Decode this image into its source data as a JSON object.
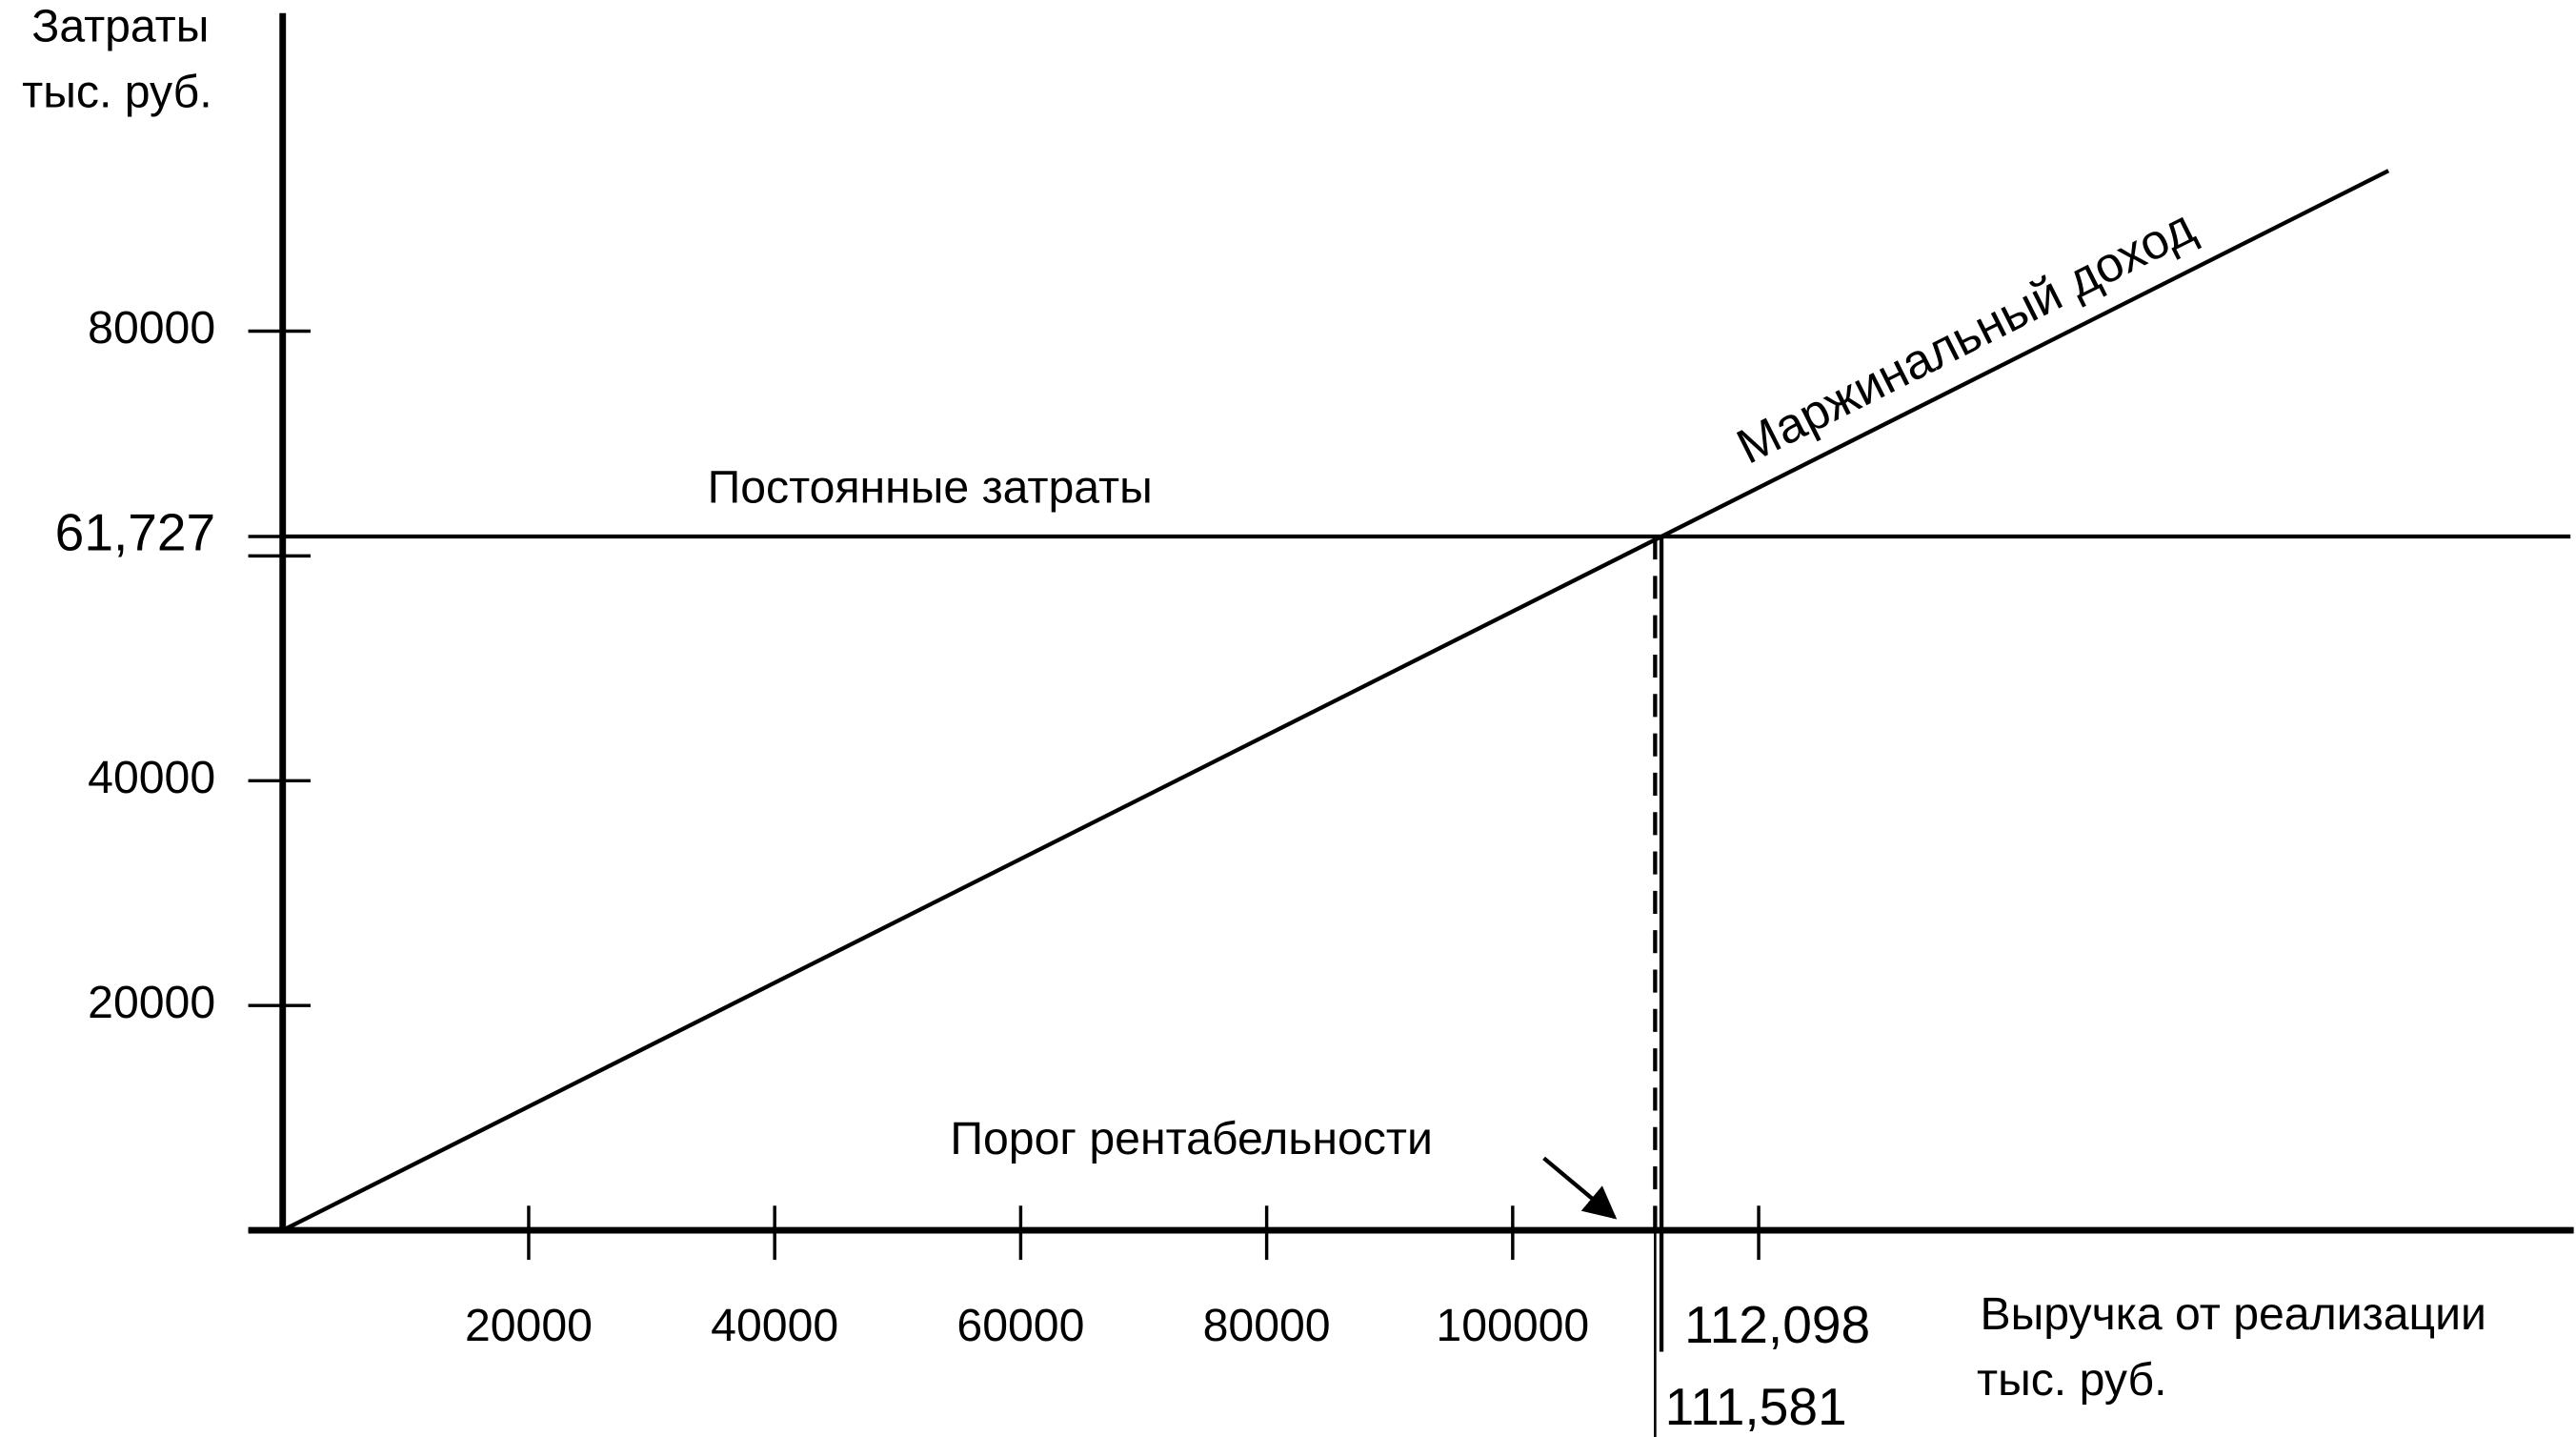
{
  "chart_data": {
    "type": "line",
    "y_label": [
      "Затраты",
      "тыс. руб."
    ],
    "x_label": [
      "Выручка от реализации",
      "тыс. руб."
    ],
    "xlim": [
      0,
      186000
    ],
    "ylim": [
      0,
      108000
    ],
    "xticks": [
      20000,
      40000,
      60000,
      80000,
      100000
    ],
    "unlabeled_xticks": [
      120000
    ],
    "yticks": [
      20000,
      40000,
      {
        "value": 61727,
        "label": "61,727"
      },
      80000
    ],
    "unlabeled_yticks": [
      0,
      60000
    ],
    "series": [
      {
        "name": "Постоянные затраты",
        "color": "#000000",
        "x": [
          0,
          186000
        ],
        "values": [
          61727,
          61727
        ]
      },
      {
        "name": "Маржинальный доход",
        "color": "#000000",
        "x": [
          0,
          171200
        ],
        "values": [
          0,
          94270
        ]
      }
    ],
    "markers": [
      {
        "value": 111581,
        "label": "111,581",
        "style": "dashed"
      },
      {
        "value": 112098,
        "label": "112,098",
        "style": "solid"
      }
    ],
    "annotation": "Порог рентабельности"
  }
}
